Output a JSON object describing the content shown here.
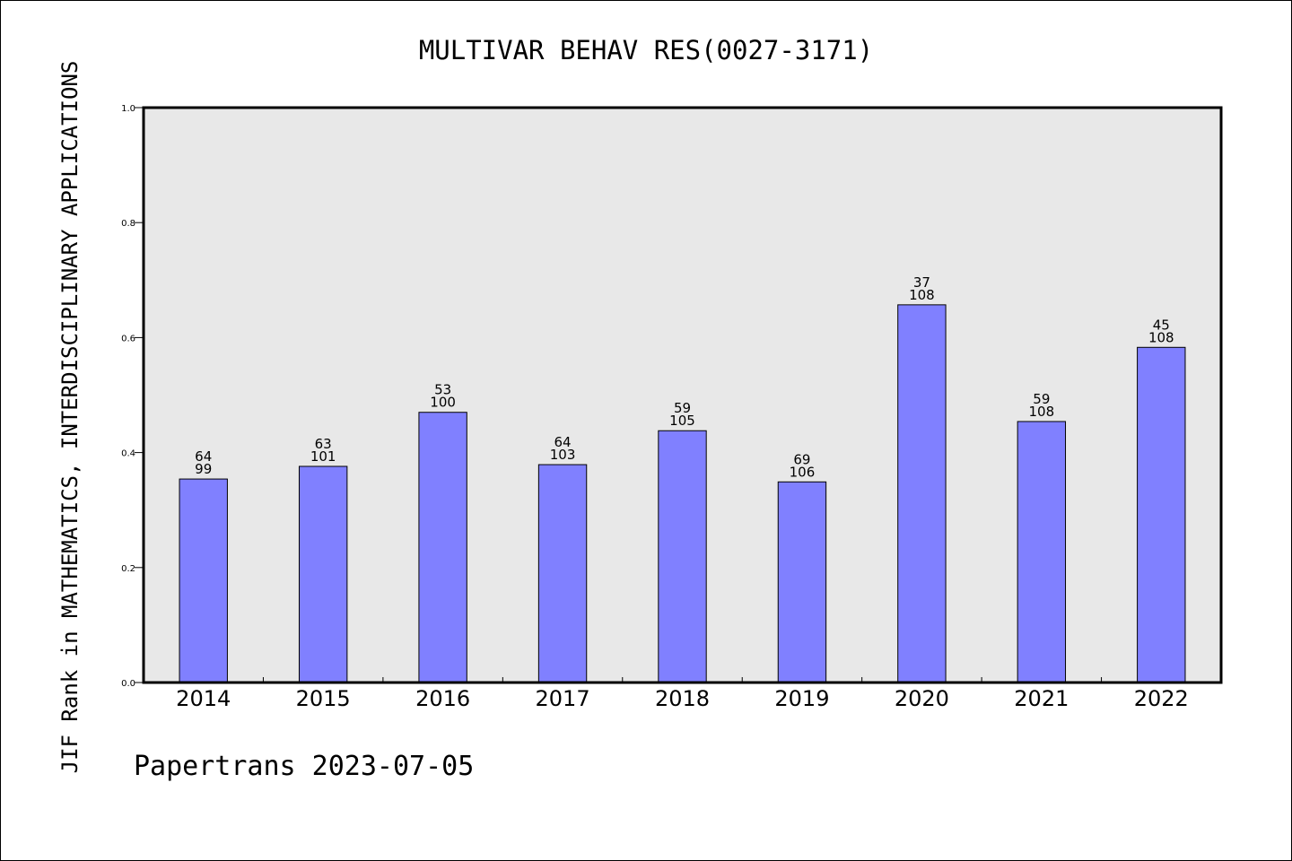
{
  "chart_data": {
    "type": "bar",
    "title": "MULTIVAR BEHAV RES(0027-3171)",
    "ylabel": "JIF Rank in MATHEMATICS, INTERDISCIPLINARY APPLICATIONS",
    "xlabel": "",
    "ylim": [
      0.0,
      1.0
    ],
    "yticks": [
      "0.0",
      "0.2",
      "0.4",
      "0.6",
      "0.8",
      "1.0"
    ],
    "categories": [
      "2014",
      "2015",
      "2016",
      "2017",
      "2018",
      "2019",
      "2020",
      "2021",
      "2022"
    ],
    "rank": [
      "64",
      "63",
      "53",
      "64",
      "59",
      "69",
      "37",
      "59",
      "45"
    ],
    "total": [
      "99",
      "101",
      "100",
      "103",
      "105",
      "106",
      "108",
      "108",
      "108"
    ],
    "values": [
      0.354,
      0.376,
      0.47,
      0.379,
      0.438,
      0.349,
      0.657,
      0.454,
      0.583
    ],
    "grid": false,
    "colors": {
      "bar": "#8080ff",
      "plot_background": "#e8e8e8"
    }
  },
  "footer": "Papertrans 2023-07-05"
}
